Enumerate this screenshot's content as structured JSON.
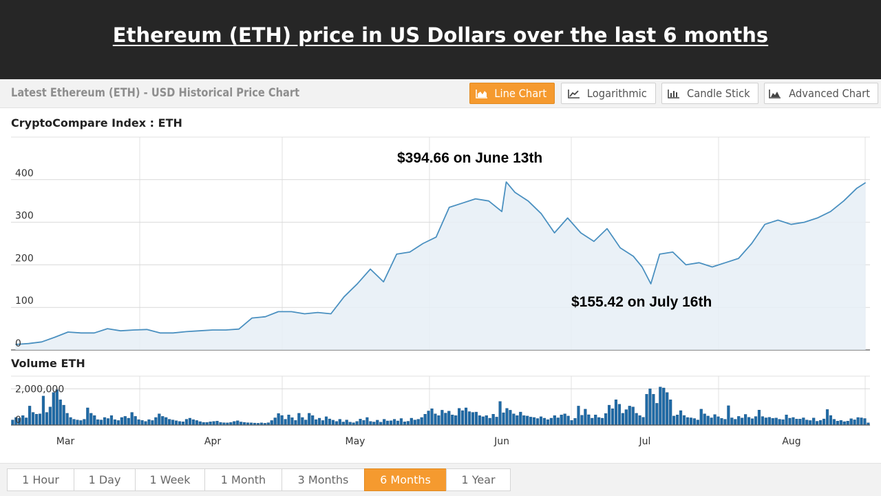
{
  "banner": {
    "title": "Ethereum (ETH) price in US Dollars over the last 6 months"
  },
  "header": {
    "title": "Latest Ethereum (ETH) - USD Historical Price Chart"
  },
  "chart_types": [
    {
      "label": "Line Chart",
      "icon": "area-chart-icon",
      "active": true
    },
    {
      "label": "Logarithmic",
      "icon": "line-chart-icon",
      "active": false
    },
    {
      "label": "Candle Stick",
      "icon": "bar-chart-icon",
      "active": false
    },
    {
      "label": "Advanced Chart",
      "icon": "mountain-chart-icon",
      "active": false
    }
  ],
  "price_panel": {
    "label": "CryptoCompare Index : ETH"
  },
  "volume_panel": {
    "label": "Volume ETH"
  },
  "annotations": {
    "high": "$394.66 on June 13th",
    "low": "$155.42 on July 16th"
  },
  "time_ranges": [
    {
      "label": "1 Hour",
      "active": false
    },
    {
      "label": "1 Day",
      "active": false
    },
    {
      "label": "1 Week",
      "active": false
    },
    {
      "label": "1 Month",
      "active": false
    },
    {
      "label": "3 Months",
      "active": false
    },
    {
      "label": "6 Months",
      "active": true
    },
    {
      "label": "1 Year",
      "active": false
    }
  ],
  "colors": {
    "accent": "#f59a2f",
    "line": "#4a90c0",
    "fill": "#e6eef6",
    "volume": "#1f6aa5",
    "banner": "#262626"
  },
  "chart_data": [
    {
      "type": "area",
      "title": "CryptoCompare Index : ETH",
      "x_tick_labels": [
        "Mar",
        "Apr",
        "May",
        "Jun",
        "Jul",
        "Aug"
      ],
      "y_tick_labels": [
        "0",
        "100",
        "200",
        "300",
        "400"
      ],
      "ylim": [
        0,
        500
      ],
      "grid": true,
      "series": [
        {
          "name": "ETH",
          "x": [
            "2017-02-21",
            "2017-02-24",
            "2017-02-27",
            "2017-03-02",
            "2017-03-05",
            "2017-03-08",
            "2017-03-11",
            "2017-03-14",
            "2017-03-17",
            "2017-03-20",
            "2017-03-23",
            "2017-03-26",
            "2017-03-29",
            "2017-04-01",
            "2017-04-04",
            "2017-04-07",
            "2017-04-10",
            "2017-04-13",
            "2017-04-16",
            "2017-04-19",
            "2017-04-22",
            "2017-04-25",
            "2017-04-28",
            "2017-05-01",
            "2017-05-04",
            "2017-05-07",
            "2017-05-10",
            "2017-05-13",
            "2017-05-16",
            "2017-05-19",
            "2017-05-22",
            "2017-05-25",
            "2017-05-28",
            "2017-05-31",
            "2017-06-03",
            "2017-06-06",
            "2017-06-09",
            "2017-06-12",
            "2017-06-13",
            "2017-06-15",
            "2017-06-18",
            "2017-06-21",
            "2017-06-24",
            "2017-06-27",
            "2017-06-30",
            "2017-07-03",
            "2017-07-06",
            "2017-07-09",
            "2017-07-12",
            "2017-07-14",
            "2017-07-16",
            "2017-07-18",
            "2017-07-21",
            "2017-07-24",
            "2017-07-27",
            "2017-07-30",
            "2017-08-02",
            "2017-08-05",
            "2017-08-08",
            "2017-08-11",
            "2017-08-14",
            "2017-08-17",
            "2017-08-20",
            "2017-08-23",
            "2017-08-26",
            "2017-08-29",
            "2017-09-01",
            "2017-09-03"
          ],
          "values": [
            13,
            15,
            19,
            30,
            42,
            40,
            40,
            50,
            45,
            47,
            48,
            40,
            40,
            43,
            45,
            47,
            47,
            49,
            75,
            78,
            90,
            90,
            85,
            88,
            85,
            125,
            155,
            190,
            160,
            225,
            230,
            250,
            265,
            335,
            345,
            355,
            350,
            325,
            394.66,
            370,
            350,
            320,
            275,
            310,
            275,
            255,
            285,
            240,
            220,
            195,
            155.42,
            225,
            230,
            200,
            205,
            195,
            205,
            215,
            250,
            295,
            305,
            295,
            300,
            310,
            325,
            350,
            380,
            393
          ]
        }
      ]
    },
    {
      "type": "bar",
      "title": "Volume ETH",
      "x_tick_labels": [
        "Mar",
        "Apr",
        "May",
        "Jun",
        "Jul",
        "Aug"
      ],
      "y_tick_labels": [
        "0",
        "2,000,000"
      ],
      "ylim": [
        0,
        2700000
      ],
      "grid": true,
      "series": [
        {
          "name": "Volume ETH",
          "values": [
            280000,
            420000,
            380000,
            520000,
            400000,
            1050000,
            700000,
            600000,
            620000,
            1600000,
            700000,
            1000000,
            1800000,
            1950000,
            1400000,
            1100000,
            650000,
            420000,
            320000,
            280000,
            250000,
            320000,
            950000,
            650000,
            520000,
            300000,
            280000,
            420000,
            360000,
            520000,
            300000,
            250000,
            420000,
            480000,
            380000,
            700000,
            480000,
            300000,
            260000,
            200000,
            300000,
            250000,
            420000,
            620000,
            480000,
            420000,
            320000,
            280000,
            240000,
            200000,
            180000,
            320000,
            380000,
            300000,
            250000,
            190000,
            150000,
            150000,
            180000,
            200000,
            220000,
            150000,
            130000,
            120000,
            150000,
            200000,
            240000,
            170000,
            150000,
            130000,
            120000,
            110000,
            100000,
            120000,
            100000,
            130000,
            250000,
            400000,
            640000,
            530000,
            320000,
            560000,
            410000,
            260000,
            650000,
            420000,
            280000,
            650000,
            520000,
            300000,
            380000,
            250000,
            460000,
            340000,
            270000,
            200000,
            320000,
            170000,
            280000,
            160000,
            130000,
            200000,
            330000,
            260000,
            420000,
            200000,
            170000,
            270000,
            160000,
            320000,
            230000,
            240000,
            320000,
            230000,
            360000,
            180000,
            210000,
            380000,
            280000,
            320000,
            420000,
            600000,
            780000,
            900000,
            620000,
            520000,
            820000,
            660000,
            770000,
            560000,
            520000,
            920000,
            800000,
            950000,
            740000,
            700000,
            720000,
            520000,
            460000,
            520000,
            380000,
            600000,
            440000,
            1300000,
            680000,
            920000,
            820000,
            620000,
            520000,
            720000,
            520000,
            500000,
            440000,
            420000,
            360000,
            460000,
            380000,
            300000,
            380000,
            520000,
            400000,
            560000,
            620000,
            500000,
            260000,
            370000,
            1050000,
            540000,
            880000,
            570000,
            380000,
            560000,
            420000,
            380000,
            640000,
            1100000,
            900000,
            1400000,
            1150000,
            650000,
            850000,
            1050000,
            1000000,
            650000,
            520000,
            430000,
            1700000,
            2000000,
            1700000,
            1200000,
            2100000,
            2050000,
            1800000,
            1400000,
            500000,
            560000,
            800000,
            530000,
            420000,
            400000,
            360000,
            280000,
            880000,
            620000,
            500000,
            400000,
            580000,
            460000,
            370000,
            320000,
            1070000,
            400000,
            320000,
            480000,
            390000,
            590000,
            430000,
            350000,
            470000,
            830000,
            470000,
            400000,
            430000,
            370000,
            390000,
            320000,
            300000,
            560000,
            380000,
            420000,
            330000,
            330000,
            400000,
            280000,
            250000,
            390000,
            210000,
            260000,
            340000,
            860000,
            530000,
            320000,
            220000,
            260000,
            190000,
            220000,
            350000,
            290000,
            420000,
            400000,
            360000,
            120000
          ]
        }
      ]
    }
  ]
}
